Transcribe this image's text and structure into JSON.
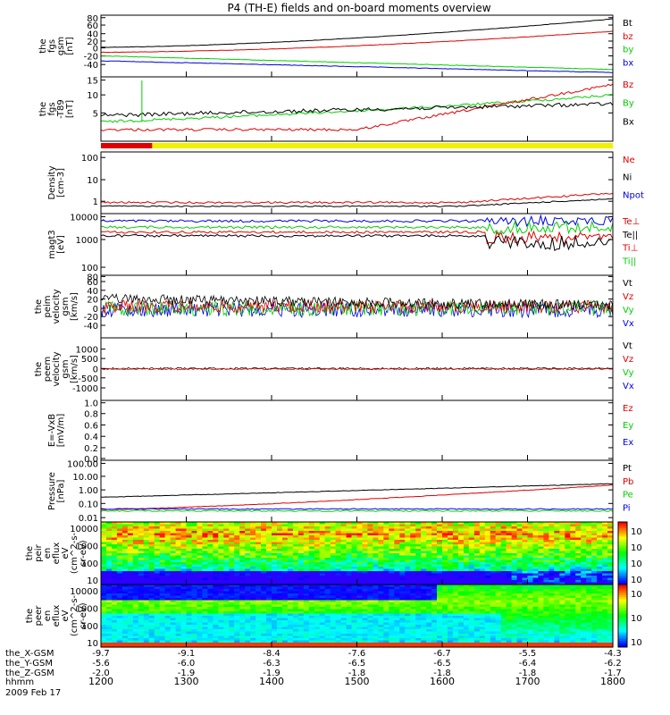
{
  "title": "P4 (TH-E) fields and on-board moments overview",
  "xlabels": [
    "1200",
    "1300",
    "1400",
    "1500",
    "1600",
    "1700",
    "1800"
  ],
  "footer": {
    "rows": [
      {
        "name": "the_X-GSM",
        "values": [
          "-9.7",
          "-9.1",
          "-8.4",
          "-7.6",
          "-6.7",
          "-5.5",
          "-4.3"
        ]
      },
      {
        "name": "the_Y-GSM",
        "values": [
          "-5.6",
          "-6.0",
          "-6.3",
          "-6.5",
          "-6.5",
          "-6.4",
          "-6.2"
        ]
      },
      {
        "name": "the_Z-GSM",
        "values": [
          "-2.0",
          "-1.9",
          "-1.9",
          "-1.8",
          "-1.8",
          "-1.8",
          "-1.7"
        ]
      }
    ],
    "time_label": "hhmm",
    "date": "2009 Feb 17"
  },
  "colors": {
    "black": "#000000",
    "red": "#e00000",
    "green": "#00d000",
    "blue": "#0000e0",
    "yellow": "#f0f000"
  },
  "chart_data": [
    {
      "type": "line",
      "id": "fgs-gsm",
      "ylabel": [
        "the",
        "fgs",
        "gsm",
        "[nT]"
      ],
      "yticks": [
        "80",
        "60",
        "40",
        "20",
        "0",
        "-20",
        "-40"
      ],
      "legend": [
        {
          "label": "Bt",
          "color": "black"
        },
        {
          "label": "bz",
          "color": "red"
        },
        {
          "label": "by",
          "color": "green"
        },
        {
          "label": "bx",
          "color": "blue"
        }
      ]
    },
    {
      "type": "line",
      "id": "fgs-t89",
      "ylabel": [
        "the",
        "fgs",
        "-T89",
        "[nT]"
      ],
      "yticks": [
        "15",
        "10",
        "5"
      ],
      "legend": [
        {
          "label": "Bz",
          "color": "red"
        },
        {
          "label": "By",
          "color": "green"
        },
        {
          "label": "Bx",
          "color": "black"
        }
      ]
    },
    {
      "type": "line",
      "id": "density",
      "ylabel": [
        "Density",
        "[cm-3]"
      ],
      "yticks": [
        "100",
        "10",
        "1"
      ],
      "legend": [
        {
          "label": "Ne",
          "color": "red"
        },
        {
          "label": "Ni",
          "color": "black"
        },
        {
          "label": "Npot",
          "color": "blue"
        }
      ]
    },
    {
      "type": "line",
      "id": "temperature",
      "ylabel": [
        "magt3",
        "[eV]"
      ],
      "yticks": [
        "10000",
        "1000",
        "100"
      ],
      "legend": [
        {
          "label": "Te⊥",
          "color": "red"
        },
        {
          "label": "Te||",
          "color": "black"
        },
        {
          "label": "Ti⊥",
          "color": "red"
        },
        {
          "label": "Ti||",
          "color": "green"
        }
      ]
    },
    {
      "type": "line",
      "id": "peim-velocity",
      "ylabel": [
        "the",
        "peim",
        "velocity",
        "gsm",
        "[km/s]"
      ],
      "yticks": [
        "80",
        "60",
        "40",
        "20",
        "0",
        "-20",
        "-40"
      ],
      "legend": [
        {
          "label": "Vt",
          "color": "black"
        },
        {
          "label": "Vz",
          "color": "red"
        },
        {
          "label": "Vy",
          "color": "green"
        },
        {
          "label": "Vx",
          "color": "blue"
        }
      ]
    },
    {
      "type": "line",
      "id": "peem-velocity",
      "ylabel": [
        "the",
        "peem",
        "velocity",
        "gsm",
        "[km/s]"
      ],
      "yticks": [
        "1000",
        "500",
        "0",
        "-500",
        "-1000"
      ],
      "legend": [
        {
          "label": "Vt",
          "color": "black"
        },
        {
          "label": "Vz",
          "color": "red"
        },
        {
          "label": "Vy",
          "color": "green"
        },
        {
          "label": "Vx",
          "color": "blue"
        }
      ]
    },
    {
      "type": "line",
      "id": "efield",
      "ylabel": [
        "E=-VxB",
        "[mV/m]"
      ],
      "yticks": [
        "1.0",
        "0.8",
        "0.6",
        "0.4",
        "0.2",
        "0.0"
      ],
      "legend": [
        {
          "label": "Ez",
          "color": "red"
        },
        {
          "label": "Ey",
          "color": "green"
        },
        {
          "label": "Ex",
          "color": "blue"
        }
      ]
    },
    {
      "type": "line",
      "id": "pressure",
      "ylabel": [
        "Pressure",
        "[nPa]"
      ],
      "yticks": [
        "100.00",
        "10.00",
        "1.00",
        "0.10",
        "0.01"
      ],
      "legend": [
        {
          "label": "Pt",
          "color": "black"
        },
        {
          "label": "Pb",
          "color": "red"
        },
        {
          "label": "Pe",
          "color": "green"
        },
        {
          "label": "Pi",
          "color": "blue"
        }
      ]
    },
    {
      "type": "heatmap",
      "id": "peir-spec",
      "ylabel": [
        "the",
        "peir",
        "en",
        "eflux",
        "eV",
        "(cm^2-s-",
        "sr-eV)"
      ],
      "yticks": [
        "10000",
        "1000",
        "100",
        "10"
      ],
      "colorbar": [
        "10^6",
        "10^5",
        "10^4",
        "10^3"
      ]
    },
    {
      "type": "heatmap",
      "id": "peer-spec",
      "ylabel": [
        "the",
        "peer",
        "en",
        "eflux",
        "eV",
        "(cm^2-s-",
        "sr-eV)"
      ],
      "yticks": [
        "10000",
        "1000",
        "100",
        "10"
      ],
      "colorbar": [
        "10^8",
        "10^7",
        "10^6"
      ]
    }
  ]
}
